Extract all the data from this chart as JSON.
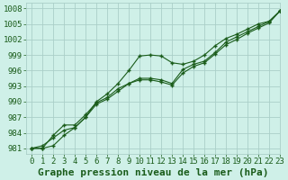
{
  "background_color": "#cff0e8",
  "grid_color": "#aacfc8",
  "line_color": "#1a5c1a",
  "marker_color": "#1a5c1a",
  "title": "Graphe pression niveau de la mer (hPa)",
  "xlim": [
    -0.5,
    23
  ],
  "ylim": [
    980,
    1009
  ],
  "yticks": [
    981,
    984,
    987,
    990,
    993,
    996,
    999,
    1002,
    1005,
    1008
  ],
  "xticks": [
    0,
    1,
    2,
    3,
    4,
    5,
    6,
    7,
    8,
    9,
    10,
    11,
    12,
    13,
    14,
    15,
    16,
    17,
    18,
    19,
    20,
    21,
    22,
    23
  ],
  "series1": [
    981.0,
    981.0,
    981.5,
    983.5,
    985.0,
    987.0,
    990.0,
    991.5,
    993.5,
    996.0,
    998.8,
    999.0,
    998.8,
    997.5,
    997.2,
    997.8,
    999.0,
    1000.8,
    1002.2,
    1003.0,
    1004.0,
    1005.0,
    1005.5,
    1007.5
  ],
  "series2": [
    981.0,
    981.0,
    983.5,
    985.5,
    985.5,
    987.5,
    989.8,
    990.8,
    992.5,
    993.5,
    994.5,
    994.5,
    994.2,
    993.5,
    996.2,
    997.2,
    997.8,
    999.5,
    1001.5,
    1002.5,
    1003.5,
    1004.5,
    1005.5,
    1007.5
  ],
  "series3": [
    981.0,
    981.5,
    983.0,
    984.5,
    985.0,
    987.0,
    989.5,
    990.5,
    992.0,
    993.5,
    994.2,
    994.2,
    993.8,
    993.2,
    995.5,
    996.8,
    997.5,
    999.2,
    1001.0,
    1002.0,
    1003.2,
    1004.2,
    1005.2,
    1007.5
  ],
  "title_fontsize": 8,
  "tick_fontsize": 6.5
}
